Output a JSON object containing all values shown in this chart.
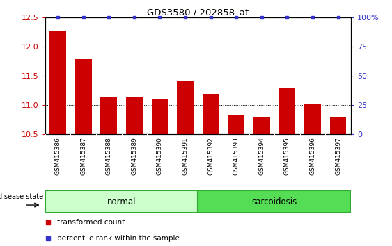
{
  "title": "GDS3580 / 202858_at",
  "samples": [
    "GSM415386",
    "GSM415387",
    "GSM415388",
    "GSM415389",
    "GSM415390",
    "GSM415391",
    "GSM415392",
    "GSM415393",
    "GSM415394",
    "GSM415395",
    "GSM415396",
    "GSM415397"
  ],
  "bar_values": [
    12.27,
    11.78,
    11.13,
    11.13,
    11.1,
    11.42,
    11.19,
    10.82,
    10.8,
    11.3,
    11.02,
    10.78
  ],
  "bar_color": "#cc0000",
  "percentile_color": "#3333cc",
  "ylim_left": [
    10.5,
    12.5
  ],
  "ylim_right": [
    0,
    100
  ],
  "yticks_left": [
    10.5,
    11.0,
    11.5,
    12.0,
    12.5
  ],
  "yticks_right": [
    0,
    25,
    50,
    75,
    100
  ],
  "groups": [
    {
      "label": "normal",
      "start": 0,
      "end": 6,
      "color": "#ccffcc",
      "edge": "#33aa33"
    },
    {
      "label": "sarcoidosis",
      "start": 6,
      "end": 12,
      "color": "#55dd55",
      "edge": "#33aa33"
    }
  ],
  "disease_label": "disease state",
  "legend_bar_label": "transformed count",
  "legend_percentile_label": "percentile rank within the sample",
  "bar_width": 0.65,
  "background_color": "#ffffff",
  "tick_bg_color": "#cccccc",
  "tick_label_color_left": "#cc0000",
  "tick_label_color_right": "#3333cc",
  "grid_yticks": [
    11.0,
    11.5,
    12.0
  ]
}
